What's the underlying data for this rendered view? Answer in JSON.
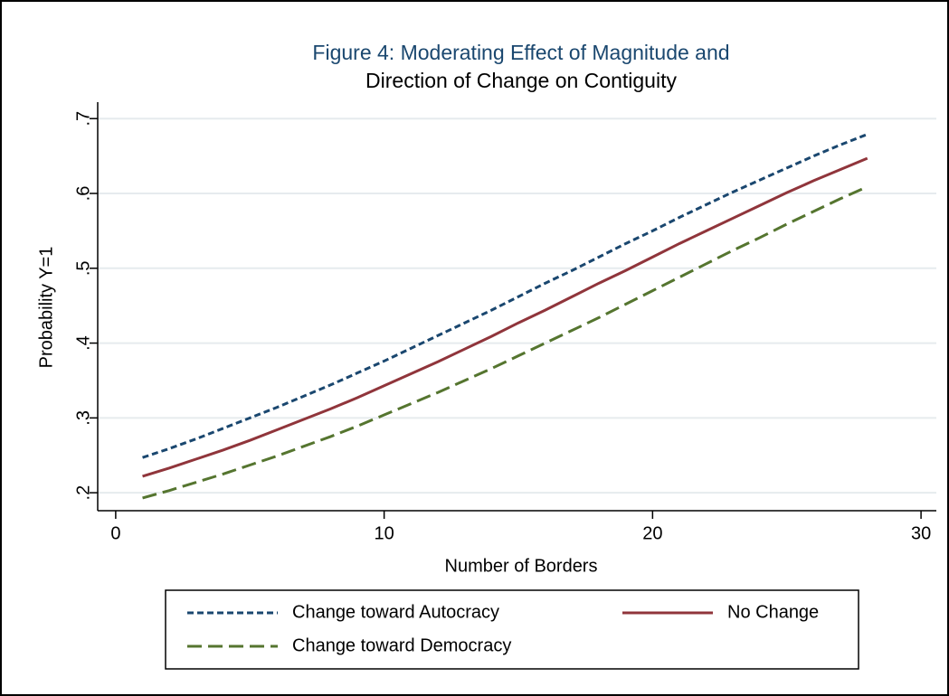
{
  "chart_data": {
    "type": "line",
    "title": [
      "Figure 4: Moderating Effect of Magnitude and",
      "Direction of Change on Contiguity"
    ],
    "x_label": "Number of Borders",
    "y_label": "Probability Y=1",
    "x": [
      1,
      2,
      3,
      4,
      5,
      6,
      7,
      8,
      9,
      10,
      11,
      12,
      13,
      14,
      15,
      16,
      17,
      18,
      19,
      20,
      21,
      22,
      23,
      24,
      25,
      26,
      27,
      28
    ],
    "series": [
      {
        "name": "Change toward Autocracy",
        "color": "#1a476f",
        "dash": "short",
        "values": [
          0.247,
          0.259,
          0.272,
          0.286,
          0.3,
          0.314,
          0.329,
          0.344,
          0.36,
          0.376,
          0.393,
          0.41,
          0.427,
          0.444,
          0.462,
          0.48,
          0.497,
          0.515,
          0.533,
          0.55,
          0.568,
          0.585,
          0.602,
          0.618,
          0.634,
          0.65,
          0.665,
          0.679
        ]
      },
      {
        "name": "No Change",
        "color": "#90353b",
        "dash": "solid",
        "values": [
          0.222,
          0.233,
          0.245,
          0.257,
          0.27,
          0.284,
          0.298,
          0.312,
          0.327,
          0.343,
          0.359,
          0.375,
          0.392,
          0.409,
          0.427,
          0.444,
          0.462,
          0.48,
          0.497,
          0.515,
          0.533,
          0.55,
          0.567,
          0.584,
          0.601,
          0.617,
          0.632,
          0.647
        ]
      },
      {
        "name": "Change toward Democracy",
        "color": "#55752f",
        "dash": "long",
        "values": [
          0.193,
          0.203,
          0.214,
          0.225,
          0.237,
          0.249,
          0.262,
          0.275,
          0.289,
          0.304,
          0.319,
          0.334,
          0.35,
          0.366,
          0.383,
          0.4,
          0.417,
          0.434,
          0.452,
          0.47,
          0.488,
          0.506,
          0.524,
          0.541,
          0.559,
          0.576,
          0.593,
          0.609
        ]
      }
    ],
    "xlim": [
      -0.67,
      30.57
    ],
    "ylim": [
      0.176,
      0.722
    ],
    "xticks": [
      0,
      10,
      20,
      30
    ],
    "yticks": [
      {
        "value": 0.2,
        "label": ".2"
      },
      {
        "value": 0.3,
        "label": ".3"
      },
      {
        "value": 0.4,
        "label": ".4"
      },
      {
        "value": 0.5,
        "label": ".5"
      },
      {
        "value": 0.6,
        "label": ".6"
      },
      {
        "value": 0.7,
        "label": ".7"
      }
    ],
    "grid": true,
    "legend": "bottom"
  }
}
